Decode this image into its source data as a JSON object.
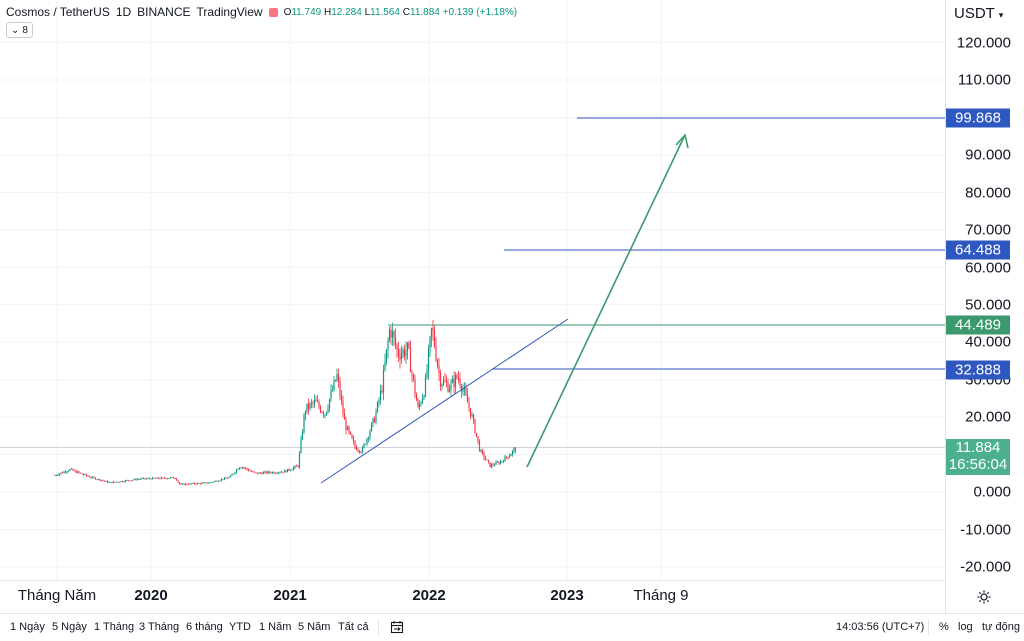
{
  "legend": {
    "symbol": "Cosmos / TetherUS",
    "interval": "1D",
    "exchange": "BINANCE",
    "source": "TradingView",
    "o_label": "O",
    "o_value": "11.749",
    "h_label": "H",
    "h_value": "12.284",
    "l_label": "L",
    "l_value": "11.564",
    "c_label": "C",
    "c_value": "11.884",
    "change": "+0.139 (+1.18%)",
    "indicator_count": "8"
  },
  "price_axis": {
    "currency": "USDT",
    "labels": [
      "120.000",
      "110.000",
      "90.000",
      "80.000",
      "70.000",
      "60.000",
      "50.000",
      "40.000",
      "30.000",
      "20.000",
      "0.000",
      "-10.000",
      "-20.000"
    ]
  },
  "price_badges": {
    "b1": "99.868",
    "b2": "64.488",
    "b3": "44.489",
    "b4": "32.888",
    "current_price": "11.884",
    "countdown": "16:56:04"
  },
  "time_axis": {
    "labels": [
      "Tháng Năm",
      "2020",
      "2021",
      "2022",
      "2023",
      "Tháng 9"
    ]
  },
  "bottom_bar": {
    "ranges": [
      "1 Ngày",
      "5 Ngày",
      "1 Tháng",
      "3 Tháng",
      "6 tháng",
      "YTD",
      "1 Năm",
      "5 Năm",
      "Tất cả"
    ],
    "clock": "14:03:56 (UTC+7)",
    "percent": "%",
    "log": "log",
    "auto": "tự động"
  },
  "colors": {
    "up": "#089981",
    "down": "#f23645",
    "blue_line": "#2f57c0",
    "green_line": "#3a9a6e",
    "badge_blue": "#2962ff",
    "badge_green": "#26a69a"
  },
  "icons": {
    "settings": "gear-icon",
    "compare": "calendar-compare-icon"
  }
}
